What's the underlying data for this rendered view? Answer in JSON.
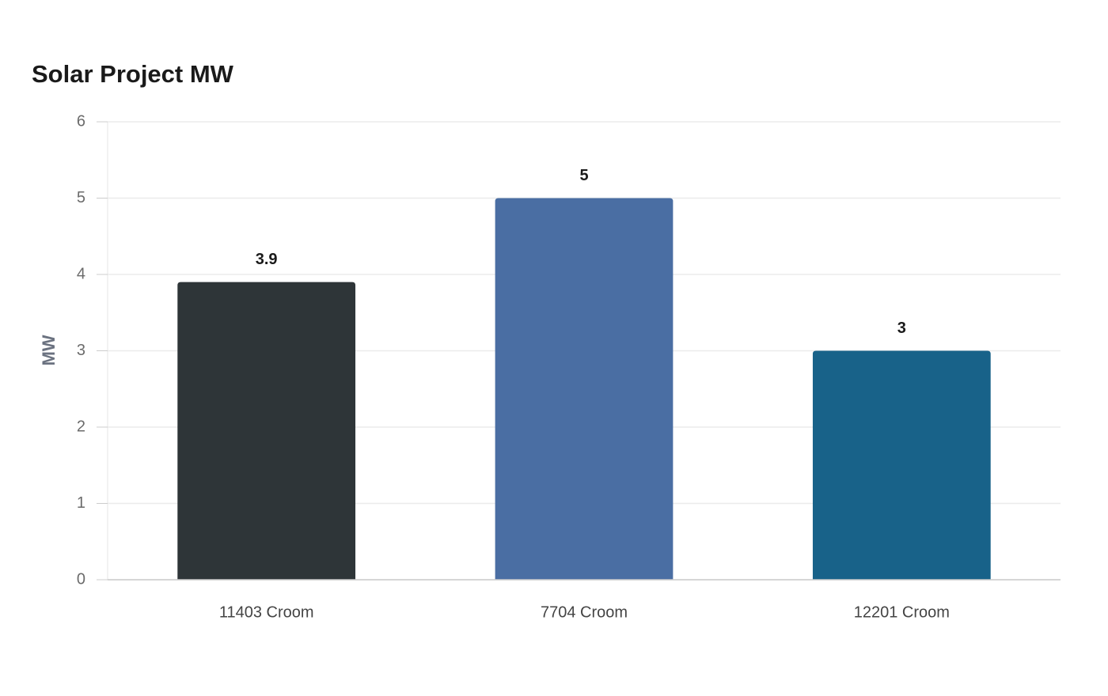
{
  "chart_data": {
    "type": "bar",
    "title": "Solar Project MW",
    "y_label": "MW",
    "categories": [
      "11403 Croom",
      "7704 Croom",
      "12201 Croom"
    ],
    "values": [
      3.9,
      5,
      3
    ],
    "colors": [
      "#2e3538",
      "#4a6ea3",
      "#186289"
    ],
    "ylim": [
      0,
      6
    ],
    "yticks": [
      0,
      1,
      2,
      3,
      4,
      5,
      6
    ],
    "grid": true
  }
}
